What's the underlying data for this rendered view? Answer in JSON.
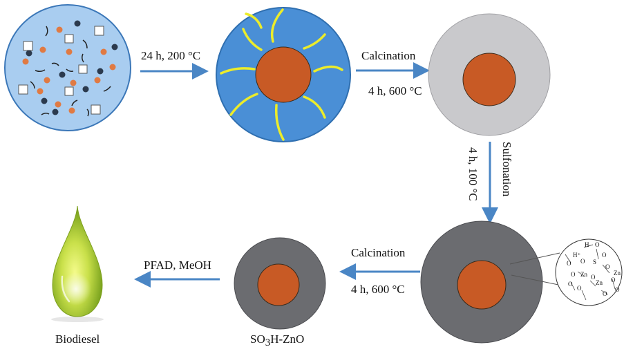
{
  "title": "",
  "colors": {
    "arrow": "#4a86c5",
    "solution_fill": "#a9cdf0",
    "solution_stroke": "#3b77b8",
    "orange_particle": "#e07a43",
    "dark_particle": "#2b3a4e",
    "shell_blue": "#4a8fd6",
    "core_orange": "#c85a25",
    "yellow_strand": "#ecec2a",
    "light_grey_shell": "#c9c9cc",
    "dark_grey_shell": "#6b6c70",
    "drop_green": "#c9e04a"
  },
  "steps": {
    "hydrothermal": "24 h, 200 °C",
    "calcination1_label": "Calcination",
    "calcination1_condition": "4 h, 600 °C",
    "sulfonation_label": "Sulfonation",
    "sulfonation_condition": "4 h, 100 °C",
    "calcination2_label": "Calcination",
    "calcination2_condition": "4 h, 600 °C",
    "esterification": "PFAD, MeOH"
  },
  "labels": {
    "catalyst_prefix": "SO",
    "catalyst_subscript": "3",
    "catalyst_suffix": "H-ZnO",
    "product": "Biodiesel"
  },
  "surface_inset": {
    "atoms": [
      "H⁺",
      "H",
      "O",
      "O",
      "S",
      "O",
      "O",
      "O",
      "Zn",
      "O",
      "O",
      "Zn",
      "O",
      "Zn",
      "O",
      "O",
      "O",
      "O"
    ]
  }
}
